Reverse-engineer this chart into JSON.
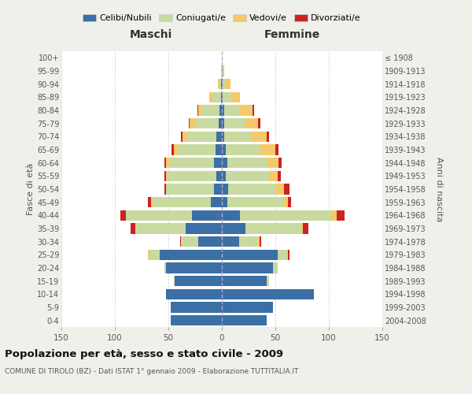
{
  "age_groups": [
    "0-4",
    "5-9",
    "10-14",
    "15-19",
    "20-24",
    "25-29",
    "30-34",
    "35-39",
    "40-44",
    "45-49",
    "50-54",
    "55-59",
    "60-64",
    "65-69",
    "70-74",
    "75-79",
    "80-84",
    "85-89",
    "90-94",
    "95-99",
    "100+"
  ],
  "birth_years": [
    "2004-2008",
    "1999-2003",
    "1994-1998",
    "1989-1993",
    "1984-1988",
    "1979-1983",
    "1974-1978",
    "1969-1973",
    "1964-1968",
    "1959-1963",
    "1954-1958",
    "1949-1953",
    "1944-1948",
    "1939-1943",
    "1934-1938",
    "1929-1933",
    "1924-1928",
    "1919-1923",
    "1914-1918",
    "1909-1913",
    "≤ 1908"
  ],
  "male": {
    "celibi": [
      48,
      48,
      52,
      44,
      52,
      58,
      22,
      34,
      28,
      10,
      7,
      5,
      7,
      6,
      5,
      3,
      2,
      1,
      1,
      0,
      0
    ],
    "coniugati": [
      0,
      0,
      0,
      1,
      2,
      10,
      16,
      47,
      62,
      55,
      45,
      46,
      42,
      35,
      28,
      22,
      17,
      8,
      2,
      1,
      0
    ],
    "vedovi": [
      0,
      0,
      0,
      0,
      0,
      1,
      0,
      0,
      0,
      1,
      0,
      1,
      3,
      4,
      4,
      5,
      3,
      3,
      1,
      0,
      0
    ],
    "divorziati": [
      0,
      0,
      0,
      0,
      0,
      0,
      1,
      4,
      5,
      3,
      2,
      2,
      2,
      2,
      1,
      1,
      1,
      0,
      0,
      0,
      0
    ]
  },
  "female": {
    "nubili": [
      42,
      48,
      86,
      42,
      48,
      52,
      16,
      22,
      17,
      5,
      6,
      4,
      5,
      4,
      2,
      2,
      2,
      1,
      1,
      0,
      0
    ],
    "coniugate": [
      0,
      0,
      0,
      2,
      4,
      10,
      18,
      52,
      85,
      52,
      44,
      40,
      38,
      32,
      26,
      20,
      15,
      8,
      3,
      1,
      0
    ],
    "vedove": [
      0,
      0,
      0,
      0,
      0,
      0,
      1,
      2,
      5,
      5,
      8,
      8,
      10,
      14,
      14,
      12,
      12,
      8,
      4,
      1,
      0
    ],
    "divorziate": [
      0,
      0,
      0,
      0,
      0,
      1,
      2,
      5,
      8,
      3,
      5,
      3,
      3,
      3,
      2,
      2,
      1,
      0,
      0,
      0,
      0
    ]
  },
  "colors": {
    "celibi": "#3b6fa5",
    "coniugati": "#c8daA0",
    "vedovi": "#f5c96a",
    "divorziati": "#cc2222"
  },
  "xlim": 150,
  "title": "Popolazione per età, sesso e stato civile - 2009",
  "subtitle": "COMUNE DI TIROLO (BZ) - Dati ISTAT 1° gennaio 2009 - Elaborazione TUTTITALIA.IT",
  "xlabel_left": "Maschi",
  "xlabel_right": "Femmine",
  "ylabel_left": "Fasce di età",
  "ylabel_right": "Anni di nascita",
  "legend_labels": [
    "Celibi/Nubili",
    "Coniugati/e",
    "Vedovi/e",
    "Divorziati/e"
  ],
  "bg_color": "#f0f0eb",
  "plot_bg": "#ffffff",
  "grid_color": "#cccccc"
}
